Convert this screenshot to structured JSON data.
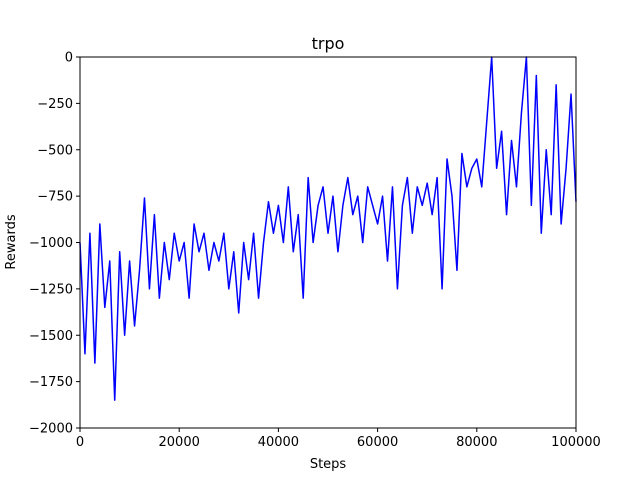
{
  "chart_data": {
    "type": "line",
    "title": "trpo",
    "x_label": "Steps",
    "y_label": "Rewards",
    "color": "#0000ff",
    "x": [
      0,
      1000,
      2000,
      3000,
      4000,
      5000,
      6000,
      7000,
      8000,
      9000,
      10000,
      11000,
      12000,
      13000,
      14000,
      15000,
      16000,
      17000,
      18000,
      19000,
      20000,
      21000,
      22000,
      23000,
      24000,
      25000,
      26000,
      27000,
      28000,
      29000,
      30000,
      31000,
      32000,
      33000,
      34000,
      35000,
      36000,
      37000,
      38000,
      39000,
      40000,
      41000,
      42000,
      43000,
      44000,
      45000,
      46000,
      47000,
      48000,
      49000,
      50000,
      51000,
      52000,
      53000,
      54000,
      55000,
      56000,
      57000,
      58000,
      59000,
      60000,
      61000,
      62000,
      63000,
      64000,
      65000,
      66000,
      67000,
      68000,
      69000,
      70000,
      71000,
      72000,
      73000,
      74000,
      75000,
      76000,
      77000,
      78000,
      79000,
      80000,
      81000,
      82000,
      83000,
      84000,
      85000,
      86000,
      87000,
      88000,
      89000,
      90000,
      91000,
      92000,
      93000,
      94000,
      95000,
      96000,
      97000,
      98000,
      99000,
      100000
    ],
    "values": [
      -1000,
      -1600,
      -950,
      -1650,
      -900,
      -1350,
      -1100,
      -1850,
      -1050,
      -1500,
      -1100,
      -1450,
      -1150,
      -760,
      -1250,
      -850,
      -1300,
      -1000,
      -1200,
      -950,
      -1100,
      -1000,
      -1300,
      -900,
      -1050,
      -950,
      -1150,
      -1000,
      -1100,
      -950,
      -1250,
      -1050,
      -1380,
      -1000,
      -1200,
      -950,
      -1300,
      -1000,
      -780,
      -950,
      -800,
      -1000,
      -700,
      -1050,
      -850,
      -1300,
      -650,
      -1000,
      -800,
      -700,
      -950,
      -750,
      -1050,
      -800,
      -650,
      -850,
      -750,
      -1000,
      -700,
      -800,
      -900,
      -750,
      -1100,
      -700,
      -1250,
      -800,
      -650,
      -950,
      -700,
      -800,
      -680,
      -850,
      -650,
      -1250,
      -550,
      -750,
      -1150,
      -520,
      -700,
      -600,
      -550,
      -700,
      -350,
      0,
      -600,
      -400,
      -850,
      -450,
      -700,
      -300,
      0,
      -800,
      -100,
      -950,
      -500,
      -850,
      -150,
      -900,
      -600,
      -200,
      -780
    ],
    "xlim": [
      0,
      100000
    ],
    "ylim": [
      -2000,
      0
    ],
    "xticks": [
      0,
      20000,
      40000,
      60000,
      80000,
      100000
    ],
    "yticks": [
      {
        "value": -2000,
        "label": "−2000"
      },
      {
        "value": -1750,
        "label": "−1750"
      },
      {
        "value": -1500,
        "label": "−1500"
      },
      {
        "value": -1250,
        "label": "−1250"
      },
      {
        "value": -1000,
        "label": "−1000"
      },
      {
        "value": -750,
        "label": "−750"
      },
      {
        "value": -500,
        "label": "−500"
      },
      {
        "value": -250,
        "label": "−250"
      },
      0
    ]
  }
}
